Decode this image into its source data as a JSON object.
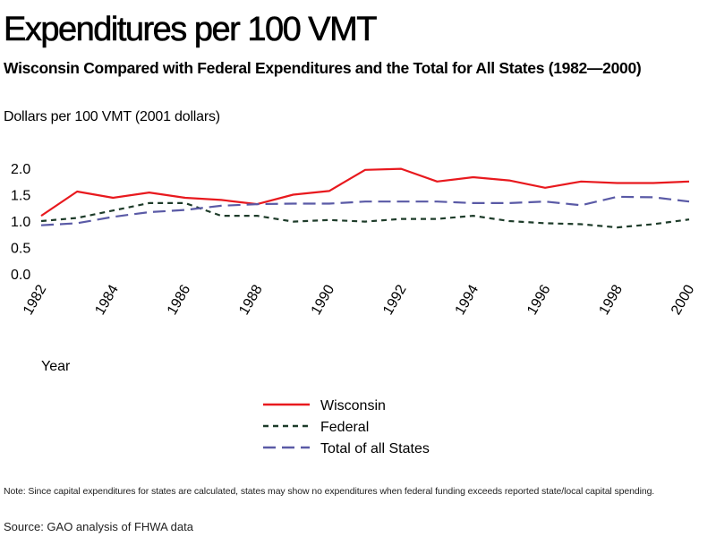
{
  "chart_data": {
    "type": "line",
    "title": "Expenditures per 100 VMT",
    "subtitle": "Wisconsin Compared with Federal Expenditures and the Total for All States (1982—2000)",
    "ylabel": "Dollars per 100 VMT (2001 dollars)",
    "xlabel": "Year",
    "ylim": [
      0,
      2
    ],
    "yticks": [
      "0.0",
      "0.5",
      "1.0",
      "1.5",
      "2.0"
    ],
    "xticks": [
      "1982",
      "1984",
      "1986",
      "1988",
      "1990",
      "1992",
      "1994",
      "1996",
      "1998",
      "2000"
    ],
    "x": [
      1982,
      1983,
      1984,
      1985,
      1986,
      1987,
      1988,
      1989,
      1990,
      1991,
      1992,
      1993,
      1994,
      1995,
      1996,
      1997,
      1998,
      1999,
      2000
    ],
    "grid": false,
    "legend_position": "bottom",
    "series": [
      {
        "name": "Wisconsin",
        "color": "#e8191e",
        "dash": "solid",
        "values": [
          1.1,
          1.56,
          1.44,
          1.54,
          1.44,
          1.4,
          1.32,
          1.5,
          1.57,
          1.97,
          1.99,
          1.75,
          1.83,
          1.77,
          1.63,
          1.75,
          1.72,
          1.72,
          1.75
        ]
      },
      {
        "name": "Federal",
        "color": "#1e3c2a",
        "dash": "dotted",
        "values": [
          1.0,
          1.06,
          1.2,
          1.34,
          1.34,
          1.1,
          1.1,
          0.99,
          1.02,
          0.99,
          1.04,
          1.04,
          1.1,
          1.0,
          0.96,
          0.94,
          0.88,
          0.94,
          1.03
        ]
      },
      {
        "name": "Total of all States",
        "color": "#5a5aa6",
        "dash": "dashed",
        "values": [
          0.92,
          0.96,
          1.08,
          1.17,
          1.21,
          1.29,
          1.32,
          1.33,
          1.33,
          1.37,
          1.37,
          1.37,
          1.34,
          1.34,
          1.37,
          1.3,
          1.46,
          1.45,
          1.37
        ]
      }
    ]
  },
  "note": "Note: Since capital expenditures for states are calculated, states may show no expenditures when federal funding exceeds reported state/local capital spending.",
  "source": "Source: GAO analysis of FHWA data"
}
